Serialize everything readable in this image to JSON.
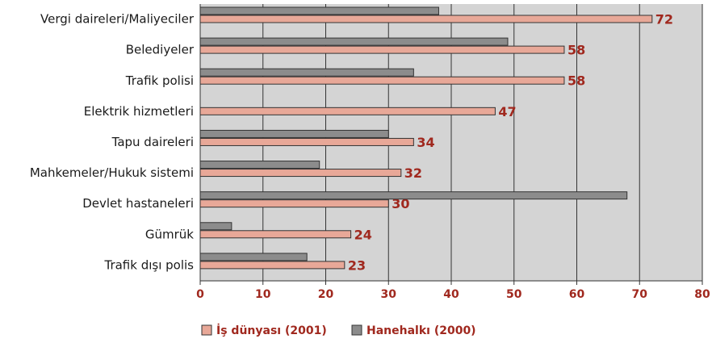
{
  "chart_data": {
    "type": "bar",
    "orientation": "horizontal",
    "categories": [
      "Vergi daireleri/Maliyeciler",
      "Belediyeler",
      "Trafik polisi",
      "Elektrik hizmetleri",
      "Tapu daireleri",
      "Mahkemeler/Hukuk sistemi",
      "Devlet hastaneleri",
      "Gümrük",
      "Trafik dışı polis"
    ],
    "series": [
      {
        "name": "İş dünyası (2001)",
        "color": "#e8a898",
        "show_labels": true,
        "values": [
          72,
          58,
          58,
          47,
          34,
          32,
          30,
          24,
          23
        ]
      },
      {
        "name": "Hanehalkı (2000)",
        "color": "#8c8c8c",
        "show_labels": false,
        "values": [
          38,
          49,
          34,
          null,
          30,
          19,
          68,
          5,
          17
        ]
      }
    ],
    "xlim": [
      0,
      80
    ],
    "xticks": [
      0,
      10,
      20,
      30,
      40,
      50,
      60,
      70,
      80
    ],
    "grid": true,
    "legend": "bottom"
  }
}
